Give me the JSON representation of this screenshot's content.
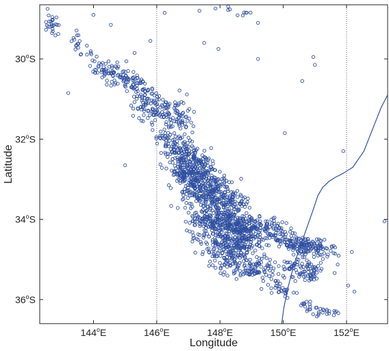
{
  "chart_data": {
    "type": "scatter",
    "title": "",
    "xlabel": "Longitude",
    "ylabel": "Latitude",
    "xlim": [
      142.3,
      153.3
    ],
    "ylim": [
      -36.6,
      -28.65
    ],
    "x_ticks": [
      {
        "value": 144,
        "num": "144",
        "sup": "o",
        "suffix": "E"
      },
      {
        "value": 146,
        "num": "146",
        "sup": "o",
        "suffix": "E"
      },
      {
        "value": 148,
        "num": "148",
        "sup": "o",
        "suffix": "E"
      },
      {
        "value": 150,
        "num": "150",
        "sup": "o",
        "suffix": "E"
      },
      {
        "value": 152,
        "num": "152",
        "sup": "o",
        "suffix": "E"
      }
    ],
    "y_ticks": [
      {
        "value": -30,
        "num": "30",
        "sup": "o",
        "suffix": "S"
      },
      {
        "value": -32,
        "num": "32",
        "sup": "o",
        "suffix": "S"
      },
      {
        "value": -34,
        "num": "34",
        "sup": "o",
        "suffix": "S"
      },
      {
        "value": -36,
        "num": "36",
        "sup": "o",
        "suffix": "S"
      }
    ],
    "grid_lines_x": [
      146,
      152
    ],
    "grid": "dotted vertical lines only",
    "legend": "none",
    "marker_color": "#2f4fa0",
    "line_color": "#2f4fa0",
    "coastline_series": {
      "x": [
        149.95,
        150.02,
        150.15,
        150.35,
        150.55,
        150.75,
        150.95,
        151.1,
        151.25,
        151.45,
        151.65,
        151.9,
        152.2,
        152.55,
        152.85,
        153.1,
        153.3
      ],
      "y": [
        -36.6,
        -36.2,
        -35.7,
        -35.1,
        -34.65,
        -34.2,
        -33.75,
        -33.4,
        -33.2,
        -33.05,
        -32.95,
        -32.85,
        -32.7,
        -32.3,
        -31.7,
        -31.2,
        -30.9
      ]
    },
    "point_clusters": [
      {
        "x": [
          142.6,
          142.8
        ],
        "y": [
          -29.0,
          -29.3
        ],
        "sx": 0.12,
        "sy": 0.12,
        "n": 25
      },
      {
        "x": [
          143.3,
          143.8
        ],
        "y": [
          -29.4,
          -29.8
        ],
        "sx": 0.12,
        "sy": 0.12,
        "n": 20
      },
      {
        "x": [
          144.0,
          144.6
        ],
        "y": [
          -30.05,
          -30.45
        ],
        "sx": 0.18,
        "sy": 0.12,
        "n": 45
      },
      {
        "x": [
          144.6,
          145.6
        ],
        "y": [
          -30.35,
          -30.7
        ],
        "sx": 0.15,
        "sy": 0.12,
        "n": 80
      },
      {
        "x": [
          145.4,
          146.9
        ],
        "y": [
          -31.0,
          -31.55
        ],
        "sx": 0.2,
        "sy": 0.2,
        "n": 180
      },
      {
        "x": [
          146.2,
          147.4
        ],
        "y": [
          -32.0,
          -32.6
        ],
        "sx": 0.2,
        "sy": 0.2,
        "n": 180
      },
      {
        "x": [
          146.6,
          147.9
        ],
        "y": [
          -32.7,
          -33.2
        ],
        "sx": 0.25,
        "sy": 0.22,
        "n": 300
      },
      {
        "x": [
          147.1,
          148.6
        ],
        "y": [
          -33.3,
          -33.7
        ],
        "sx": 0.25,
        "sy": 0.2,
        "n": 260
      },
      {
        "x": [
          147.3,
          148.9
        ],
        "y": [
          -34.0,
          -34.4
        ],
        "sx": 0.25,
        "sy": 0.18,
        "n": 260
      },
      {
        "x": [
          148.3,
          150.0
        ],
        "y": [
          -34.1,
          -34.3
        ],
        "sx": 0.3,
        "sy": 0.18,
        "n": 220
      },
      {
        "x": [
          147.7,
          149.0
        ],
        "y": [
          -34.6,
          -34.8
        ],
        "sx": 0.3,
        "sy": 0.2,
        "n": 200
      },
      {
        "x": [
          148.1,
          149.5
        ],
        "y": [
          -35.1,
          -35.3
        ],
        "sx": 0.3,
        "sy": 0.15,
        "n": 120
      },
      {
        "x": [
          150.1,
          151.4
        ],
        "y": [
          -34.6,
          -34.75
        ],
        "sx": 0.25,
        "sy": 0.12,
        "n": 160
      },
      {
        "x": [
          150.2,
          151.1
        ],
        "y": [
          -35.15,
          -35.35
        ],
        "sx": 0.25,
        "sy": 0.12,
        "n": 90
      },
      {
        "x": [
          149.7,
          150.2
        ],
        "y": [
          -35.6,
          -35.85
        ],
        "sx": 0.15,
        "sy": 0.1,
        "n": 30
      },
      {
        "x": [
          150.6,
          151.5
        ],
        "y": [
          -36.15,
          -36.35
        ],
        "sx": 0.15,
        "sy": 0.08,
        "n": 35
      },
      {
        "x": [
          148.0,
          149.0
        ],
        "y": [
          -28.65,
          -28.9
        ],
        "sx": 0.2,
        "sy": 0.05,
        "n": 10
      }
    ],
    "isolated_points": [
      {
        "x": 142.55,
        "y": -28.75
      },
      {
        "x": 144.55,
        "y": -29.15
      },
      {
        "x": 146.25,
        "y": -28.85
      },
      {
        "x": 147.35,
        "y": -28.8
      },
      {
        "x": 147.95,
        "y": -29.75
      },
      {
        "x": 147.5,
        "y": -29.6
      },
      {
        "x": 149.2,
        "y": -29.1
      },
      {
        "x": 149.2,
        "y": -30.0
      },
      {
        "x": 150.95,
        "y": -29.95
      },
      {
        "x": 151.0,
        "y": -30.15
      },
      {
        "x": 150.6,
        "y": -30.55
      },
      {
        "x": 150.05,
        "y": -31.85
      },
      {
        "x": 151.9,
        "y": -32.3
      },
      {
        "x": 153.2,
        "y": -34.05
      },
      {
        "x": 145.0,
        "y": -32.65
      },
      {
        "x": 143.2,
        "y": -30.85
      },
      {
        "x": 145.3,
        "y": -29.85
      },
      {
        "x": 144.0,
        "y": -28.9
      },
      {
        "x": 152.05,
        "y": -35.65
      },
      {
        "x": 152.25,
        "y": -35.8
      },
      {
        "x": 145.8,
        "y": -29.55
      }
    ]
  }
}
